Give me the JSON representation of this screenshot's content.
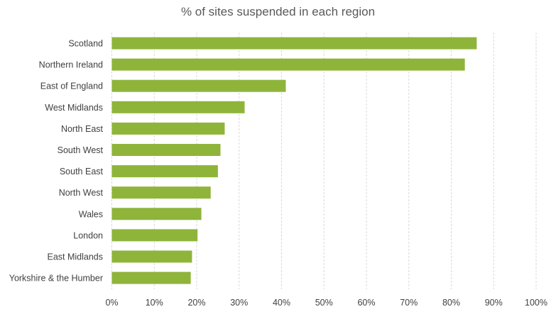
{
  "chart_data": {
    "type": "bar",
    "orientation": "horizontal",
    "title": "% of sites suspended in each region",
    "xlabel": "",
    "ylabel": "",
    "categories": [
      "Scotland",
      "Northern Ireland",
      "East of England",
      "West Midlands",
      "North East",
      "South West",
      "South East",
      "North West",
      "Wales",
      "London",
      "East Midlands",
      "Yorkshire & the Humber"
    ],
    "values": [
      86,
      83.2,
      41,
      31.3,
      26.6,
      25.6,
      25,
      23.3,
      21.1,
      20.2,
      18.9,
      18.6
    ],
    "xlim": [
      0,
      100
    ],
    "x_ticks": [
      "0%",
      "10%",
      "20%",
      "30%",
      "40%",
      "50%",
      "60%",
      "70%",
      "80%",
      "90%",
      "100%"
    ],
    "grid": "vertical dashed",
    "legend": "none",
    "bar_color": "#8fb43a",
    "grid_color": "#d9d9d9"
  }
}
